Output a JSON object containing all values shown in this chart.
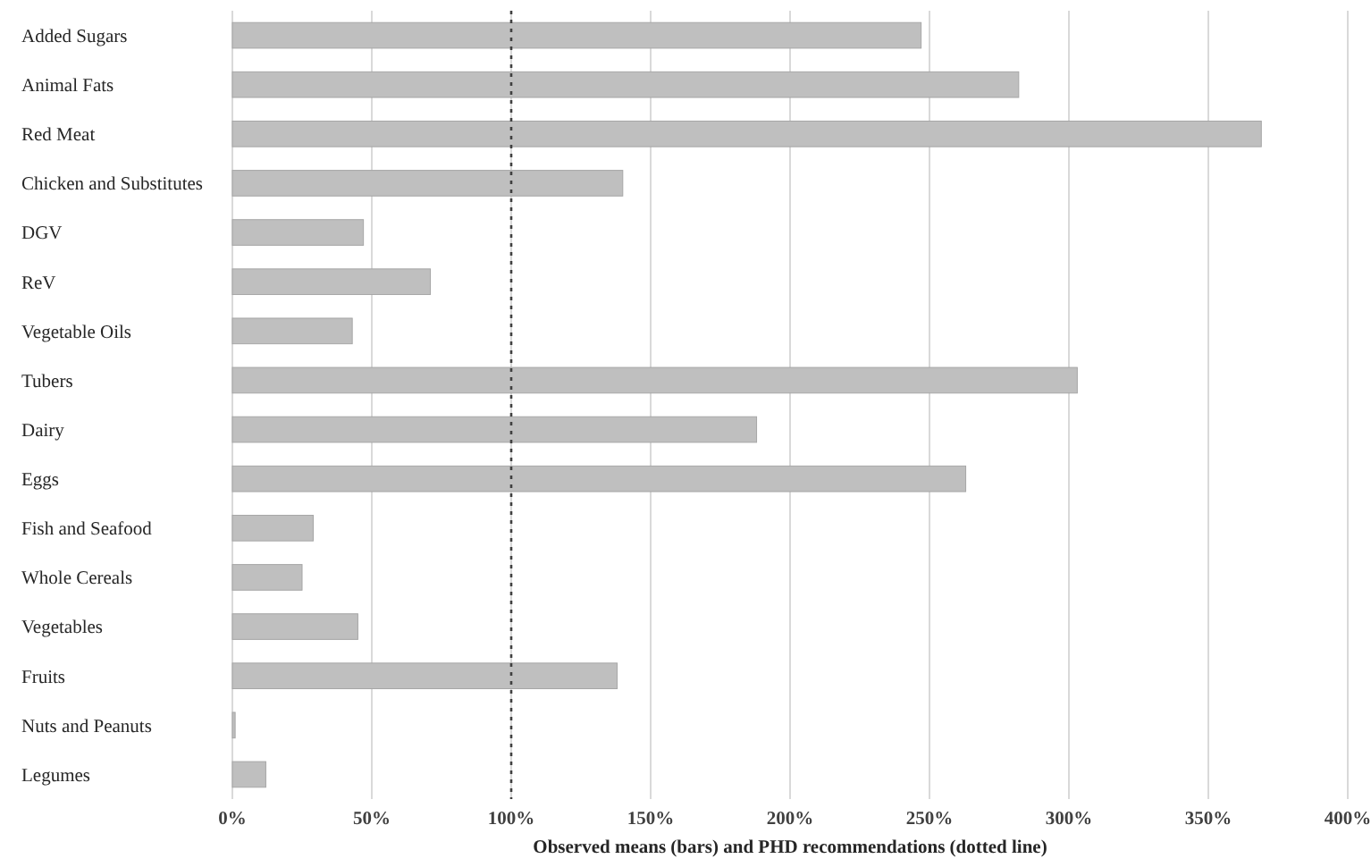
{
  "chart_data": {
    "type": "bar",
    "orientation": "horizontal",
    "xlabel": "Observed means (bars) and PHD recommendations (dotted line)",
    "categories": [
      "Added Sugars",
      "Animal Fats",
      "Red Meat",
      "Chicken and Substitutes",
      "DGV",
      "ReV",
      "Vegetable Oils",
      "Tubers",
      "Dairy",
      "Eggs",
      "Fish and Seafood",
      "Whole Cereals",
      "Vegetables",
      "Fruits",
      "Nuts and Peanuts",
      "Legumes"
    ],
    "values": [
      247,
      282,
      369,
      140,
      47,
      71,
      43,
      303,
      188,
      263,
      29,
      25,
      45,
      138,
      1,
      12
    ],
    "color": "#bfbfbf",
    "xlim": [
      0,
      400
    ],
    "xticks": [
      {
        "value": 0,
        "label": "0%"
      },
      {
        "value": 50,
        "label": "50%"
      },
      {
        "value": 100,
        "label": "100%"
      },
      {
        "value": 150,
        "label": "150%"
      },
      {
        "value": 200,
        "label": "200%"
      },
      {
        "value": 250,
        "label": "250%"
      },
      {
        "value": 300,
        "label": "300%"
      },
      {
        "value": 350,
        "label": "350%"
      },
      {
        "value": 400,
        "label": "400%"
      }
    ],
    "grid": "x",
    "ref_lines": [
      {
        "axis": "x",
        "value": 100,
        "color": "#404040",
        "line_style": "dotted"
      }
    ]
  }
}
